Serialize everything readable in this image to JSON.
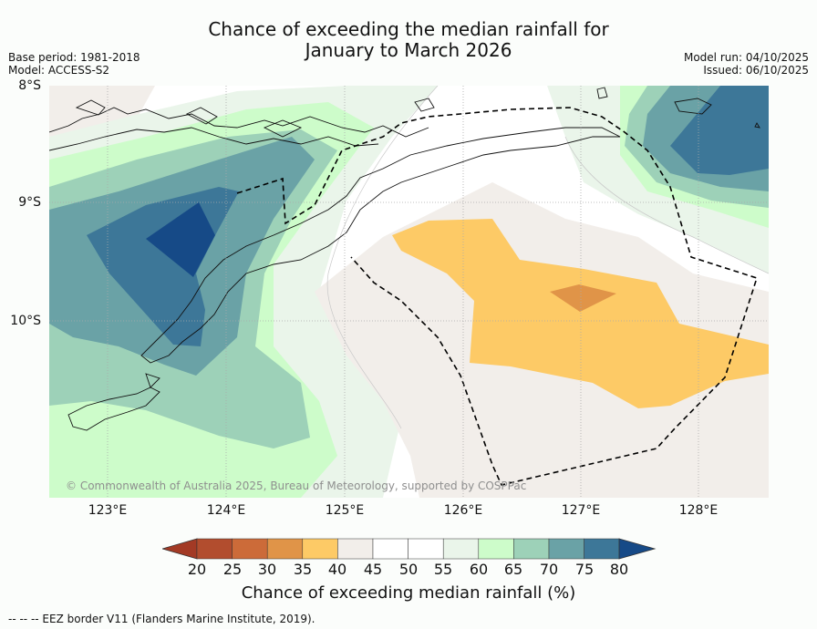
{
  "title_line1": "Chance of exceeding the median rainfall for",
  "title_line2": "January to March 2026",
  "meta_left": {
    "base_period": "Base period: 1981-2018",
    "model": "Model: ACCESS-S2"
  },
  "meta_right": {
    "model_run": "Model run: 04/10/2025",
    "issued": "Issued: 06/10/2025"
  },
  "lat_labels": [
    "8°S",
    "9°S",
    "10°S"
  ],
  "lon_labels": [
    "123°E",
    "124°E",
    "125°E",
    "126°E",
    "127°E",
    "128°E"
  ],
  "copyright": "© Commonwealth of Australia 2025, Bureau of Meteorology, supported by COSPPac",
  "colorbar": {
    "labels": [
      "20",
      "25",
      "30",
      "35",
      "40",
      "45",
      "50",
      "55",
      "60",
      "65",
      "70",
      "75",
      "80"
    ],
    "colors": [
      "#a33a25",
      "#b24d2e",
      "#cc6b39",
      "#e09448",
      "#fdca66",
      "#f2eeea",
      "#ffffff",
      "#ffffff",
      "#eaf5ea",
      "#cdfcca",
      "#9dd1b8",
      "#6aa2a6",
      "#3d7798",
      "#164a87"
    ],
    "title": "Chance of exceeding median rainfall (%)"
  },
  "footnote": "--  --  -- EEZ border V11 (Flanders Marine Institute, 2019)."
}
